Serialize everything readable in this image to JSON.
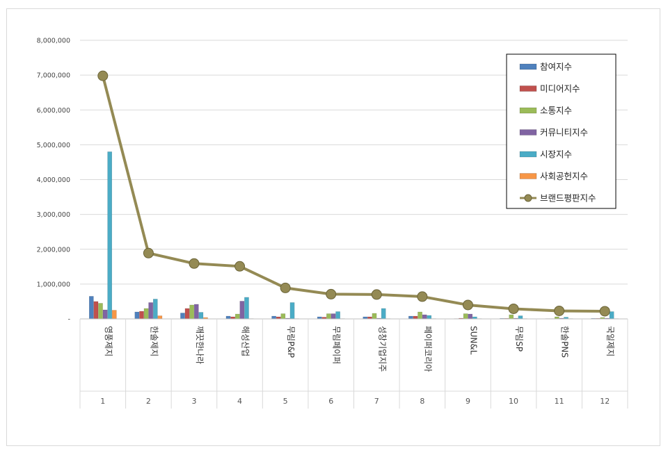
{
  "chart_data": {
    "type": "bar",
    "categories": [
      "영풍제지",
      "한솔제지",
      "깨끗한나라",
      "해성산업",
      "무림P&P",
      "무림페이퍼",
      "성창기업지주",
      "페이퍼코리아",
      "SUN&L",
      "무림SP",
      "한솔PNS",
      "국일제지"
    ],
    "category_numbers": [
      "1",
      "2",
      "3",
      "4",
      "5",
      "6",
      "7",
      "8",
      "9",
      "10",
      "11",
      "12"
    ],
    "ylim": [
      0,
      8000000
    ],
    "yticks": [
      0,
      1000000,
      2000000,
      3000000,
      4000000,
      5000000,
      6000000,
      7000000,
      8000000
    ],
    "ytick_labels": [
      "-",
      "1,000,000",
      "2,000,000",
      "3,000,000",
      "4,000,000",
      "5,000,000",
      "6,000,000",
      "7,000,000",
      "8,000,000"
    ],
    "grid": true,
    "legend_position": "top-right",
    "series": [
      {
        "name": "참여지수",
        "type": "bar",
        "color": "#4f81bd",
        "values": [
          650000,
          200000,
          170000,
          80000,
          80000,
          60000,
          60000,
          80000,
          10000,
          15000,
          10000,
          15000
        ]
      },
      {
        "name": "미디어지수",
        "type": "bar",
        "color": "#c0504d",
        "values": [
          500000,
          220000,
          300000,
          60000,
          60000,
          50000,
          60000,
          80000,
          20000,
          15000,
          10000,
          15000
        ]
      },
      {
        "name": "소통지수",
        "type": "bar",
        "color": "#9bbb59",
        "values": [
          450000,
          300000,
          400000,
          140000,
          150000,
          150000,
          160000,
          200000,
          150000,
          120000,
          60000,
          40000
        ]
      },
      {
        "name": "커뮤니티지수",
        "type": "bar",
        "color": "#8064a2",
        "values": [
          260000,
          470000,
          420000,
          510000,
          20000,
          150000,
          20000,
          120000,
          140000,
          20000,
          20000,
          20000
        ]
      },
      {
        "name": "시장지수",
        "type": "bar",
        "color": "#4bacc6",
        "values": [
          4800000,
          570000,
          190000,
          620000,
          470000,
          210000,
          300000,
          100000,
          60000,
          90000,
          50000,
          210000
        ]
      },
      {
        "name": "사회공헌지수",
        "type": "bar",
        "color": "#f79646",
        "values": [
          250000,
          90000,
          40000,
          10000,
          10000,
          10000,
          10000,
          10000,
          10000,
          10000,
          10000,
          10000
        ]
      },
      {
        "name": "브랜드평판지수",
        "type": "line",
        "color": "#948a54",
        "values": [
          6980000,
          1890000,
          1590000,
          1510000,
          890000,
          710000,
          700000,
          640000,
          400000,
          290000,
          230000,
          220000
        ]
      }
    ]
  }
}
